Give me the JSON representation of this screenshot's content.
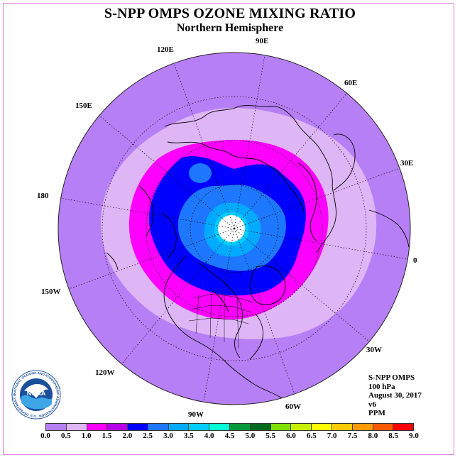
{
  "title": "S-NPP OMPS OZONE MIXING RATIO",
  "subtitle": "Northern Hemisphere",
  "longitude_labels": [
    "90E",
    "60E",
    "30E",
    "0",
    "30W",
    "60W",
    "90W",
    "120W",
    "150W",
    "180",
    "150E",
    "120E"
  ],
  "info": {
    "instrument": "S-NPP OMPS",
    "level": "100 hPa",
    "date": "August 30, 2017",
    "version": "v6",
    "units": "PPM"
  },
  "colorbar": {
    "ticks": [
      "0.0",
      "0.5",
      "1.0",
      "1.5",
      "2.0",
      "2.5",
      "3.0",
      "3.5",
      "4.0",
      "4.5",
      "5.0",
      "5.5",
      "6.0",
      "6.5",
      "7.0",
      "7.5",
      "8.0",
      "8.5",
      "9.0"
    ],
    "colors": [
      "#b77ff5",
      "#deb5f5",
      "#ff00ff",
      "#b800e6",
      "#0000ff",
      "#1e78ff",
      "#00aaff",
      "#00cdff",
      "#00ffd2",
      "#009a3c",
      "#006a1e",
      "#80e000",
      "#c8f000",
      "#ffff00",
      "#ffcc00",
      "#ff9a00",
      "#ff5a00",
      "#ff0000",
      "#8b5a3c"
    ]
  },
  "logo": {
    "text": "NOAA",
    "ring_text": "NATIONAL OCEANIC AND ATMOSPHERIC ADMINISTRATION · U.S. DEPARTMENT OF COMMERCE"
  }
}
